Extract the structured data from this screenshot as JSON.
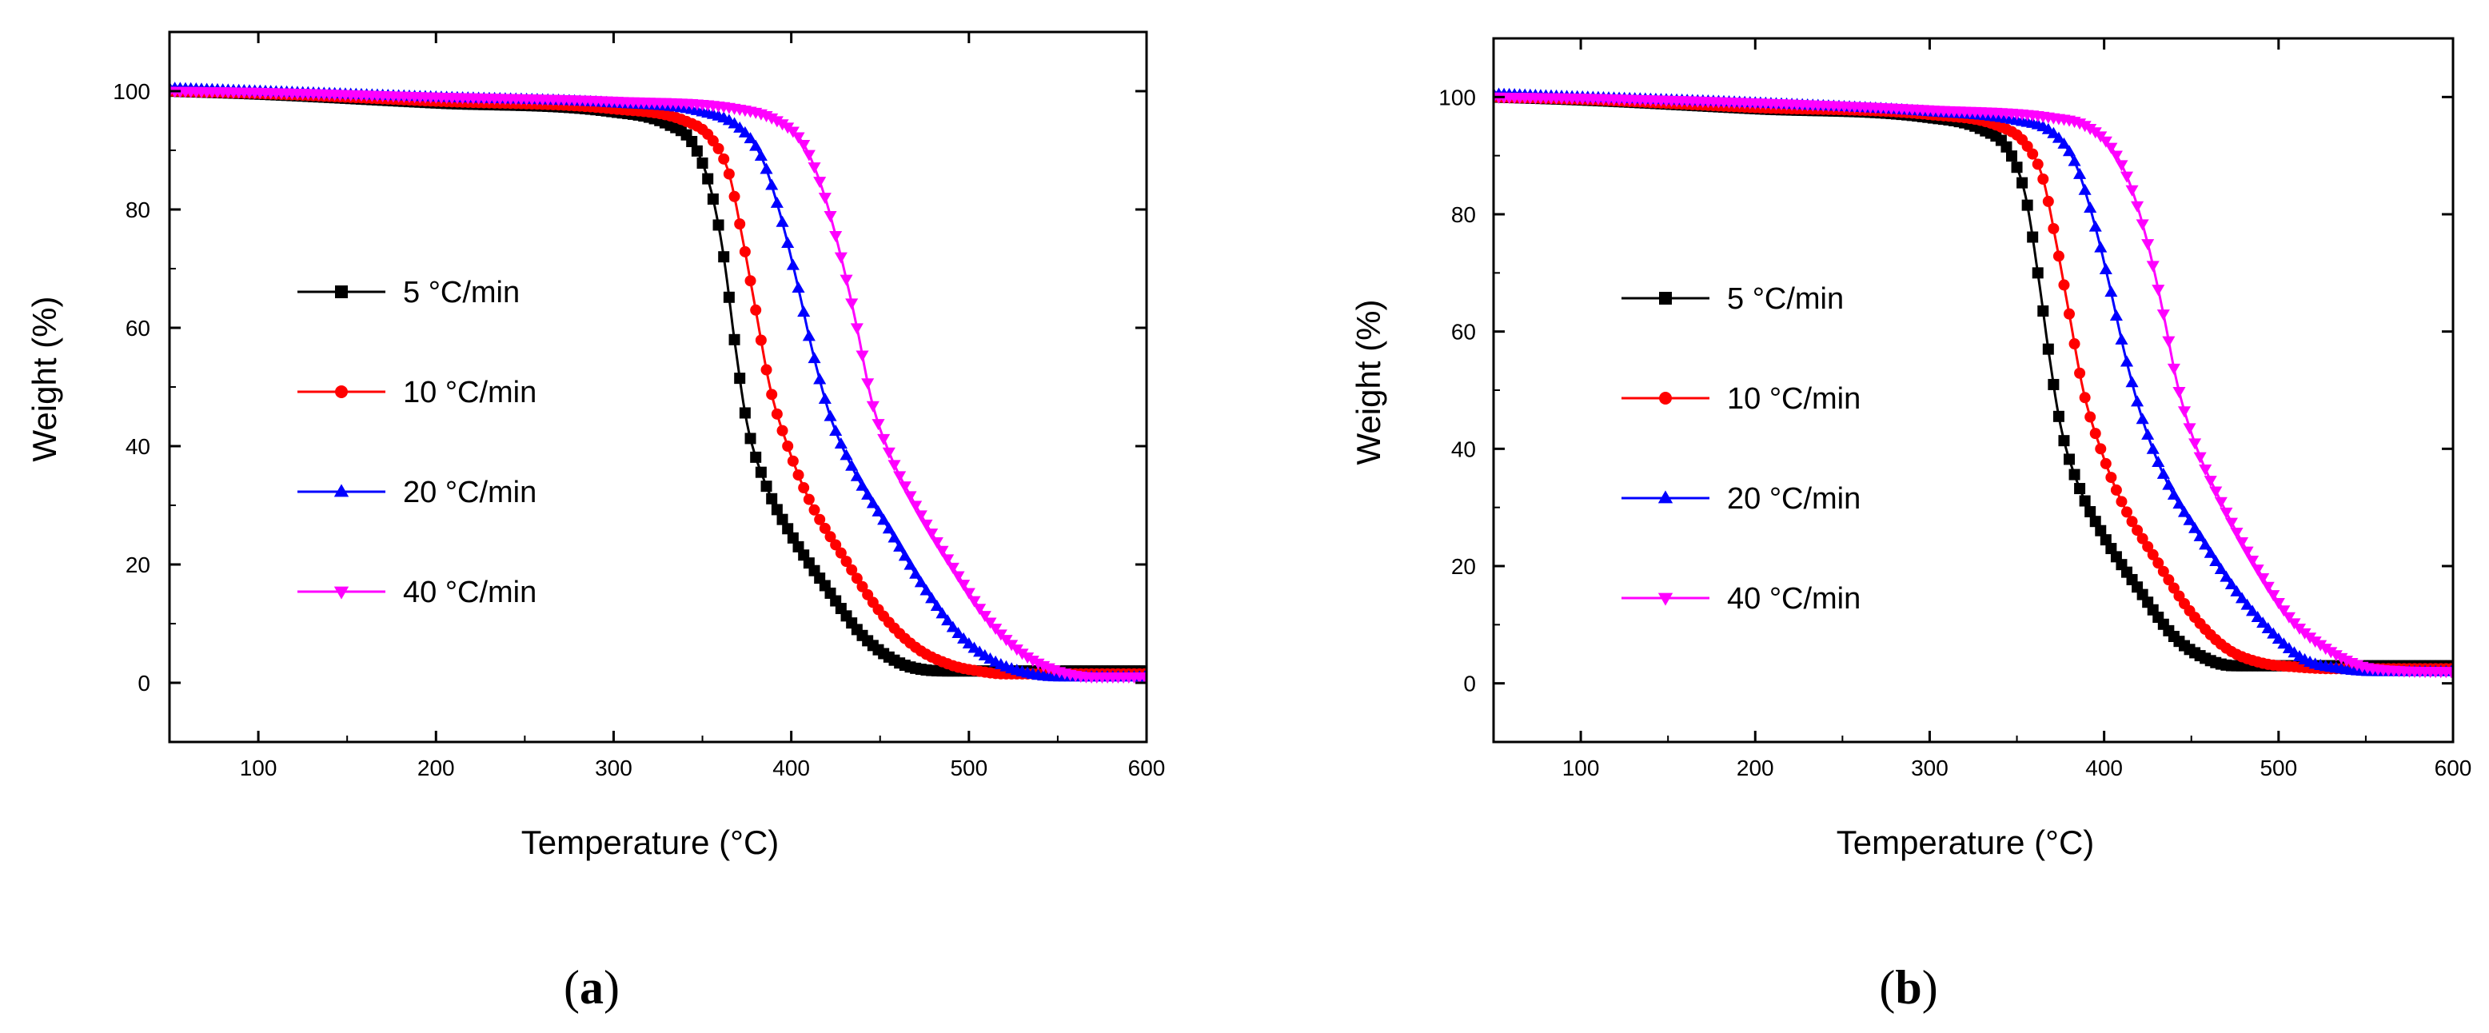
{
  "figure": {
    "panels": [
      "a",
      "b"
    ]
  },
  "chart_data": [
    {
      "type": "line",
      "panel_label": "a",
      "xlabel": "Temperature (°C)",
      "ylabel": "Weight (%)",
      "xlim": [
        50,
        600
      ],
      "ylim": [
        -10,
        110
      ],
      "xticks": [
        100,
        200,
        300,
        400,
        500,
        600
      ],
      "yticks": [
        0,
        20,
        40,
        60,
        80,
        100
      ],
      "grid": false,
      "legend_position": "center-left",
      "series": [
        {
          "name": "5 °C/min",
          "color": "#000000",
          "marker": "square",
          "x": [
            50,
            100,
            200,
            300,
            330,
            345,
            355,
            362,
            368,
            375,
            385,
            400,
            420,
            440,
            460,
            475,
            490,
            520,
            600
          ],
          "y": [
            100,
            99.5,
            98,
            96.5,
            94.5,
            91,
            83,
            72,
            58,
            44,
            34,
            25,
            16,
            8,
            3.5,
            2.2,
            2,
            2,
            2
          ]
        },
        {
          "name": "10 °C/min",
          "color": "#ff0000",
          "marker": "circle",
          "x": [
            50,
            100,
            200,
            300,
            340,
            355,
            365,
            372,
            380,
            388,
            398,
            410,
            430,
            450,
            470,
            490,
            505,
            520,
            600
          ],
          "y": [
            100,
            99.6,
            98.3,
            97,
            95,
            92,
            86,
            76,
            63,
            50,
            40,
            31,
            21,
            12,
            6,
            3,
            2,
            1.5,
            1.5
          ]
        },
        {
          "name": "20 °C/min",
          "color": "#0000ff",
          "marker": "triangle-up",
          "x": [
            50,
            100,
            200,
            300,
            350,
            370,
            383,
            393,
            403,
            412,
            422,
            435,
            455,
            475,
            495,
            515,
            535,
            550,
            600
          ],
          "y": [
            100.5,
            100,
            99,
            98,
            96.5,
            94,
            89,
            80,
            68,
            56,
            45,
            36,
            26,
            16,
            8,
            3.5,
            1.5,
            1,
            1
          ]
        },
        {
          "name": "40 °C/min",
          "color": "#ff00ff",
          "marker": "triangle-down",
          "x": [
            50,
            100,
            200,
            300,
            370,
            392,
            407,
            418,
            428,
            437,
            445,
            455,
            470,
            490,
            510,
            530,
            550,
            570,
            600
          ],
          "y": [
            100,
            99.8,
            99,
            98.3,
            97,
            95,
            91,
            83,
            72,
            60,
            48,
            39,
            30,
            20,
            11,
            5,
            2,
            1,
            1
          ]
        }
      ]
    },
    {
      "type": "line",
      "panel_label": "b",
      "xlabel": "Temperature (°C)",
      "ylabel": "Weight (%)",
      "xlim": [
        50,
        600
      ],
      "ylim": [
        -10,
        110
      ],
      "xticks": [
        100,
        200,
        300,
        400,
        500,
        600
      ],
      "yticks": [
        0,
        20,
        40,
        60,
        80,
        100
      ],
      "grid": false,
      "legend_position": "center-left",
      "series": [
        {
          "name": "5 °C/min",
          "color": "#000000",
          "marker": "square",
          "x": [
            50,
            100,
            200,
            300,
            330,
            345,
            355,
            362,
            368,
            375,
            385,
            400,
            420,
            440,
            460,
            475,
            490,
            520,
            600
          ],
          "y": [
            100,
            99.5,
            98,
            96.5,
            94.5,
            91,
            83,
            70,
            57,
            44,
            34,
            25,
            16,
            8,
            4,
            3,
            3,
            3,
            3
          ]
        },
        {
          "name": "10 °C/min",
          "color": "#ff0000",
          "marker": "circle",
          "x": [
            50,
            100,
            200,
            300,
            340,
            355,
            365,
            372,
            380,
            388,
            398,
            410,
            430,
            450,
            470,
            490,
            510,
            530,
            600
          ],
          "y": [
            100,
            99.6,
            98.2,
            97,
            95,
            92,
            86,
            76,
            63,
            50,
            40,
            31,
            21,
            12,
            6,
            3.5,
            2.8,
            2.5,
            2.5
          ]
        },
        {
          "name": "20 °C/min",
          "color": "#0000ff",
          "marker": "triangle-up",
          "x": [
            50,
            100,
            200,
            300,
            350,
            370,
            383,
            393,
            403,
            412,
            422,
            435,
            455,
            475,
            495,
            515,
            535,
            555,
            600
          ],
          "y": [
            100.5,
            100,
            99,
            97.5,
            96,
            94,
            89,
            80,
            68,
            56,
            45,
            35,
            25,
            16,
            9,
            4,
            2.5,
            2,
            2
          ]
        },
        {
          "name": "40 °C/min",
          "color": "#ff00ff",
          "marker": "triangle-down",
          "x": [
            50,
            100,
            200,
            300,
            370,
            390,
            405,
            415,
            425,
            434,
            442,
            452,
            467,
            487,
            507,
            527,
            547,
            567,
            600
          ],
          "y": [
            100,
            99.8,
            99,
            97.8,
            96.5,
            95,
            91,
            85,
            75,
            63,
            51,
            41,
            31,
            20,
            11,
            6,
            3,
            2.2,
            2
          ]
        }
      ]
    }
  ]
}
